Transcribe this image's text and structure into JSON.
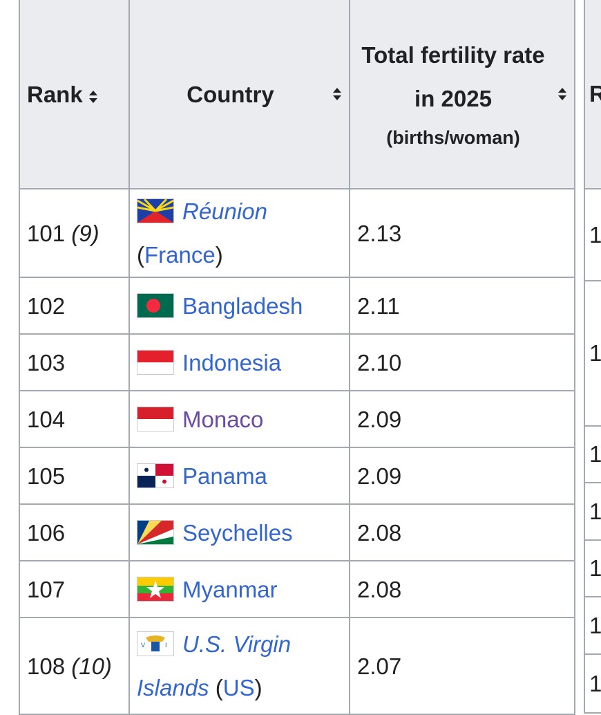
{
  "table": {
    "header": {
      "rank": "Rank",
      "country": "Country",
      "rate_lines": [
        "Total fertility rate",
        "in 2025"
      ],
      "rate_unit": "(births/woman)"
    },
    "rows": [
      {
        "rank": "101",
        "rank_note": "(9)",
        "country": "Réunion",
        "italic": true,
        "dependency": {
          "open": "(",
          "name": "France",
          "close": ")"
        },
        "rate": "2.13"
      },
      {
        "rank": "102",
        "country": "Bangladesh",
        "rate": "2.11"
      },
      {
        "rank": "103",
        "country": "Indonesia",
        "rate": "2.10"
      },
      {
        "rank": "104",
        "country": "Monaco",
        "visited": true,
        "rate": "2.09"
      },
      {
        "rank": "105",
        "country": "Panama",
        "rate": "2.09"
      },
      {
        "rank": "106",
        "country": "Seychelles",
        "rate": "2.08"
      },
      {
        "rank": "107",
        "country": "Myanmar",
        "rate": "2.08"
      },
      {
        "rank": "108",
        "rank_note": "(10)",
        "country": "U.S. Virgin Islands",
        "italic": true,
        "dependency": {
          "open": "(",
          "name": "US",
          "close": ")"
        },
        "rate": "2.07"
      }
    ]
  },
  "next_table": {
    "header": "R",
    "cells": [
      "1",
      "1",
      "1",
      "1",
      "1",
      "1",
      "1"
    ]
  }
}
